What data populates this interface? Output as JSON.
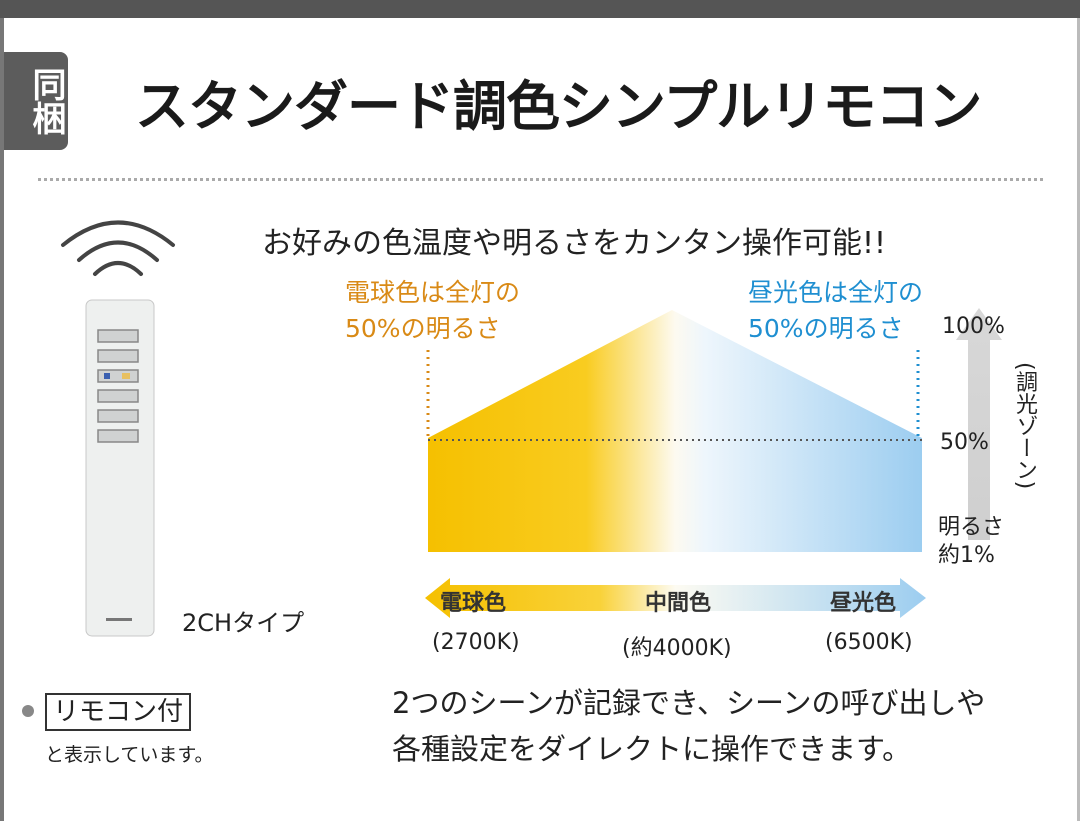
{
  "badge": "同梱",
  "title": "スタンダード調色シンプルリモコン",
  "subtitle": "お好みの色温度や明るさをカンタン操作可能!!",
  "warm_note": [
    "電球色は全灯の",
    "50%の明るさ"
  ],
  "cool_note": [
    "昼光色は全灯の",
    "50%の明るさ"
  ],
  "brightness": {
    "max": "100%",
    "mid": "50%",
    "min": [
      "明るさ",
      "約1%"
    ],
    "zone": "(調光ゾーン)"
  },
  "color_scale": [
    {
      "name": "電球色",
      "temp": "(2700K)"
    },
    {
      "name": "中間色",
      "temp": "(約4000K)"
    },
    {
      "name": "昼光色",
      "temp": "(6500K)"
    }
  ],
  "remote": {
    "model": "2CHタイプ",
    "icon": "remote-control-icon",
    "signal_icon": "wireless-signal-icon"
  },
  "legend": {
    "box": "リモコン付",
    "note": "と表示しています。"
  },
  "description": [
    "2つのシーンが記録でき、シーンの呼び出しや",
    "各種設定をダイレクトに操作できます。"
  ],
  "colors": {
    "warm": "#f5c000",
    "cool": "#9ccdf0",
    "warm_text": "#d98a16",
    "cool_text": "#1f8fd1"
  }
}
